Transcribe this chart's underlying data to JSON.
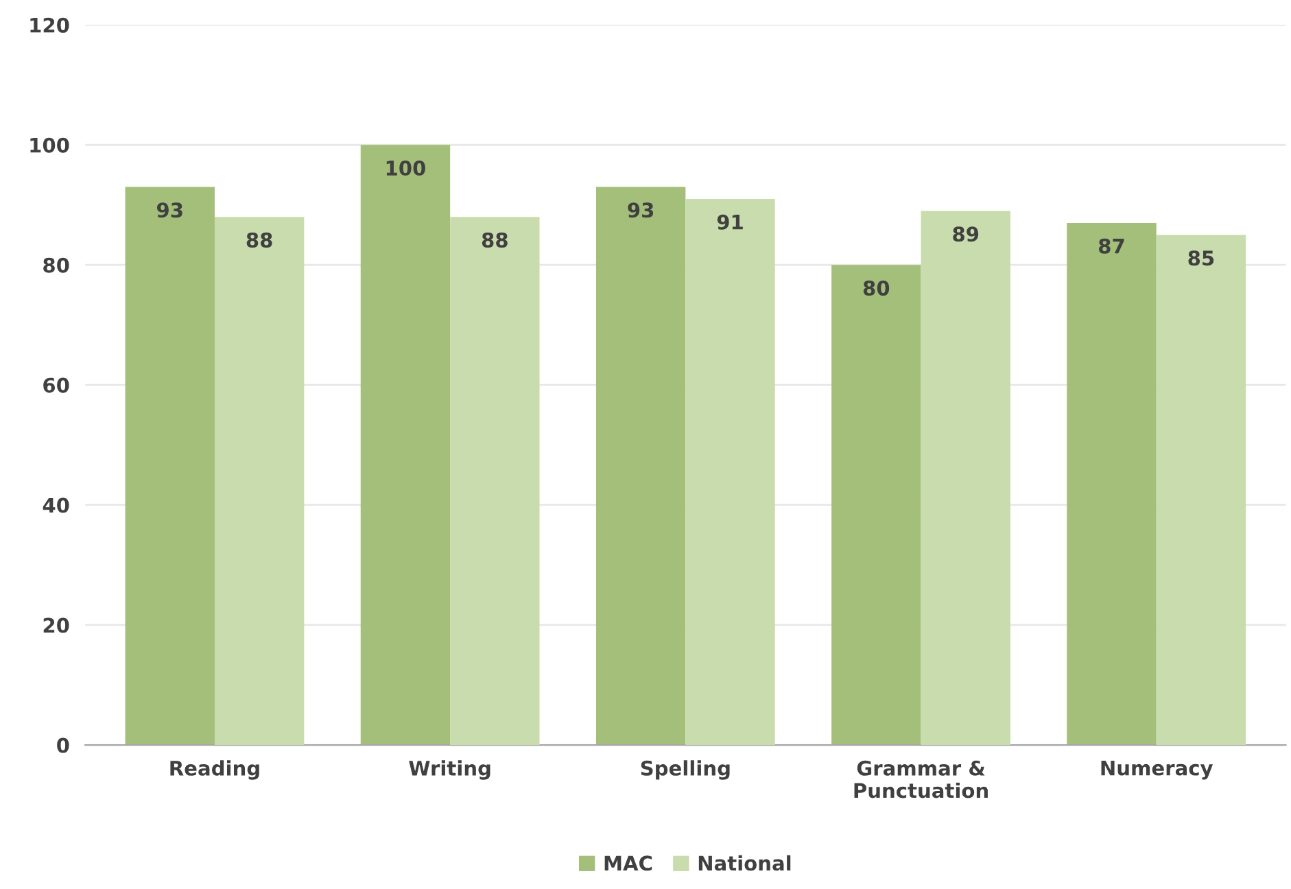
{
  "chart_data": {
    "type": "bar",
    "categories": [
      "Reading",
      "Writing",
      "Spelling",
      "Grammar &\nPunctuation",
      "Numeracy"
    ],
    "series": [
      {
        "name": "MAC",
        "color": "#a3bf7a",
        "values": [
          93,
          100,
          93,
          80,
          87
        ]
      },
      {
        "name": "National",
        "color": "#c9dcad",
        "values": [
          88,
          88,
          91,
          89,
          85
        ]
      }
    ],
    "ylim": [
      0,
      120
    ],
    "yticks": [
      0,
      20,
      40,
      60,
      80,
      100,
      120
    ],
    "grid": "y",
    "legend": "bottom",
    "data_labels": true
  }
}
